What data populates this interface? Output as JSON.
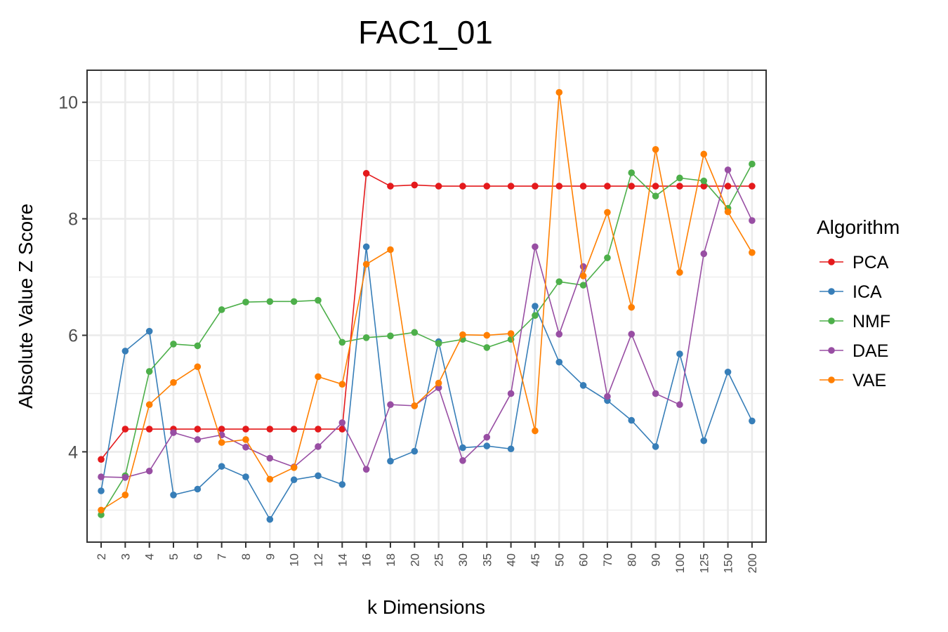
{
  "chart_data": {
    "type": "line",
    "title": "FAC1_01",
    "xlabel": "k Dimensions",
    "ylabel": "Absolute Value Z Score",
    "categories": [
      "2",
      "3",
      "4",
      "5",
      "6",
      "7",
      "8",
      "9",
      "10",
      "12",
      "14",
      "16",
      "18",
      "20",
      "25",
      "30",
      "35",
      "40",
      "45",
      "50",
      "60",
      "70",
      "80",
      "90",
      "100",
      "125",
      "150",
      "200"
    ],
    "y_ticks": [
      4,
      6,
      8,
      10
    ],
    "ylim": [
      2.45,
      10.55
    ],
    "grid": true,
    "legend": {
      "title": "Algorithm",
      "position": "right"
    },
    "series": [
      {
        "name": "PCA",
        "color": "#E41A1C",
        "values": [
          3.87,
          4.39,
          4.39,
          4.39,
          4.39,
          4.39,
          4.39,
          4.39,
          4.39,
          4.39,
          4.39,
          8.78,
          8.56,
          8.58,
          8.56,
          8.56,
          8.56,
          8.56,
          8.56,
          8.56,
          8.56,
          8.56,
          8.56,
          8.56,
          8.56,
          8.56,
          8.56,
          8.56
        ]
      },
      {
        "name": "ICA",
        "color": "#377EB8",
        "values": [
          3.33,
          5.73,
          6.07,
          3.26,
          3.36,
          3.75,
          3.57,
          2.84,
          3.52,
          3.59,
          3.44,
          7.52,
          3.84,
          4.01,
          5.89,
          4.07,
          4.1,
          4.05,
          6.5,
          5.54,
          5.14,
          4.88,
          4.54,
          4.09,
          5.68,
          4.19,
          5.37,
          4.53
        ]
      },
      {
        "name": "NMF",
        "color": "#4DAF4A",
        "values": [
          2.92,
          3.59,
          5.38,
          5.85,
          5.82,
          6.44,
          6.57,
          6.58,
          6.58,
          6.6,
          5.88,
          5.96,
          5.99,
          6.05,
          5.86,
          5.93,
          5.79,
          5.93,
          6.34,
          6.92,
          6.86,
          7.33,
          8.79,
          8.39,
          8.7,
          8.65,
          8.18,
          8.94
        ]
      },
      {
        "name": "DAE",
        "color": "#984EA3",
        "values": [
          3.57,
          3.56,
          3.67,
          4.33,
          4.21,
          4.29,
          4.08,
          3.89,
          3.74,
          4.09,
          4.5,
          3.7,
          4.81,
          4.79,
          5.1,
          3.85,
          4.25,
          5.0,
          7.52,
          6.02,
          7.18,
          4.95,
          6.02,
          5.0,
          4.81,
          7.4,
          8.84,
          7.97
        ]
      },
      {
        "name": "VAE",
        "color": "#FF7F00",
        "values": [
          3.0,
          3.26,
          4.81,
          5.19,
          5.46,
          4.16,
          4.21,
          3.53,
          3.73,
          5.29,
          5.16,
          7.22,
          7.47,
          4.79,
          5.18,
          6.01,
          6.0,
          6.03,
          4.36,
          10.17,
          7.02,
          8.11,
          6.48,
          9.19,
          7.08,
          9.11,
          8.12,
          7.42
        ]
      }
    ]
  }
}
